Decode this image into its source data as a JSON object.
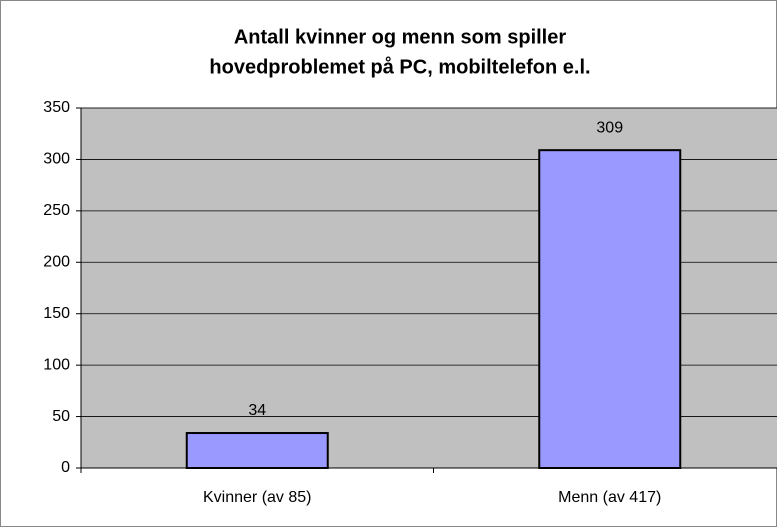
{
  "chart_data": {
    "type": "bar",
    "title": [
      "Antall kvinner og menn som spiller",
      "hovedproblemet på PC, mobiltelefon e.l."
    ],
    "categories": [
      "Kvinner (av 85)",
      "Menn (av 417)"
    ],
    "values": [
      34,
      309
    ],
    "color": "#9999ff",
    "ylim": [
      0,
      350
    ],
    "yticks": [
      0,
      50,
      100,
      150,
      200,
      250,
      300,
      350
    ],
    "grid": true
  }
}
